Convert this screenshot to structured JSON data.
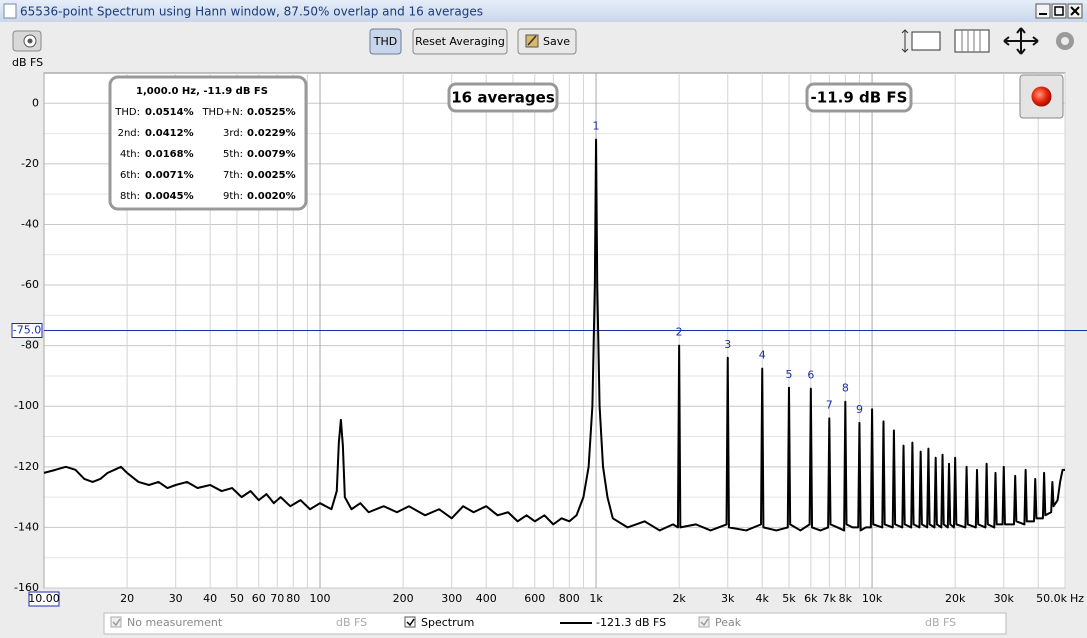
{
  "window": {
    "title": "65536-point Spectrum using Hann window, 87.50% overlap and 16 averages"
  },
  "toolbar": {
    "buttons": [
      "THD",
      "Reset Averaging",
      "Save"
    ]
  },
  "chart_data": {
    "type": "line",
    "y_unit": "dB FS",
    "x_unit": "Hz",
    "xscale": "log",
    "xlim": [
      10,
      50000
    ],
    "ylim": [
      -160,
      10
    ],
    "grid": true,
    "xticks": [
      {
        "value": 10,
        "label": "10.00"
      },
      20,
      30,
      40,
      50,
      60,
      70,
      80,
      100,
      200,
      300,
      400,
      600,
      800,
      {
        "value": 1000,
        "label": "1k"
      },
      {
        "value": 2000,
        "label": "2k"
      },
      {
        "value": 3000,
        "label": "3k"
      },
      {
        "value": 4000,
        "label": "4k"
      },
      {
        "value": 5000,
        "label": "5k"
      },
      {
        "value": 6000,
        "label": "6k"
      },
      {
        "value": 7000,
        "label": "7k"
      },
      {
        "value": 8000,
        "label": "8k"
      },
      {
        "value": 10000,
        "label": "10k"
      },
      {
        "value": 20000,
        "label": "20k"
      },
      {
        "value": 30000,
        "label": "30k"
      },
      {
        "value": 50000,
        "label": "50.0k"
      }
    ],
    "minor_xgrid": [
      90,
      500,
      700,
      900,
      9000,
      40000
    ],
    "yticks": [
      0,
      -20,
      -40,
      -60,
      -80,
      -100,
      -120,
      -140,
      -160
    ],
    "minor_ygrid": [
      -150,
      -130,
      -110,
      -90,
      -70,
      -50,
      -30,
      -10
    ],
    "cursor": {
      "value": -75,
      "label": "-75.0"
    },
    "series": [
      {
        "name": "Spectrum",
        "color": "#000000",
        "x": [
          10,
          11,
          12,
          13,
          14,
          15,
          16,
          17,
          18,
          19,
          20,
          22,
          24,
          26,
          28,
          30,
          33,
          36,
          40,
          44,
          48,
          52,
          56,
          60,
          64,
          68,
          72,
          78,
          85,
          92,
          100,
          110,
          115,
          117,
          119,
          121,
          123,
          130,
          140,
          150,
          170,
          190,
          210,
          240,
          270,
          300,
          330,
          360,
          400,
          440,
          480,
          520,
          560,
          600,
          650,
          700,
          750,
          800,
          850,
          900,
          940,
          970,
          990,
          1000,
          1010,
          1030,
          1060,
          1100,
          1150,
          1300,
          1500,
          1700,
          1900,
          1980,
          2000,
          2020,
          2300,
          2600,
          2970,
          3000,
          3030,
          3500,
          3960,
          4000,
          4040,
          4500,
          4950,
          5000,
          5050,
          5500,
          5940,
          6000,
          6060,
          6500,
          6930,
          7000,
          7070,
          7500,
          7920,
          8000,
          8080,
          8500,
          8910,
          9000,
          9090,
          9500,
          9900,
          10000,
          10100,
          10890,
          11000,
          11110,
          11880,
          12000,
          12120,
          12870,
          13000,
          13130,
          13860,
          14000,
          14140,
          14850,
          15000,
          15150,
          15840,
          16000,
          16160,
          16830,
          17000,
          17170,
          17820,
          18000,
          18180,
          18810,
          19000,
          19190,
          19800,
          20000,
          20200,
          21780,
          22000,
          22220,
          23760,
          24000,
          24240,
          25740,
          26000,
          26260,
          27720,
          28000,
          28280,
          29700,
          30000,
          30300,
          32670,
          33000,
          33330,
          35640,
          36000,
          36360,
          38610,
          39000,
          39390,
          41580,
          42000,
          42420,
          44550,
          45000,
          45450,
          47000,
          48000,
          49000,
          50000
        ],
        "values": [
          -122,
          -121,
          -120,
          -121,
          -124,
          -125,
          -124,
          -122,
          -121,
          -120,
          -122,
          -125,
          -126,
          -125,
          -127,
          -126,
          -125,
          -127,
          -126,
          -128,
          -127,
          -130,
          -128,
          -131,
          -129,
          -132,
          -130,
          -133,
          -131,
          -134,
          -132,
          -134,
          -128,
          -112,
          -104.5,
          -113,
          -130,
          -134,
          -132,
          -135,
          -133,
          -135,
          -133,
          -136,
          -134,
          -137,
          -133,
          -135,
          -133,
          -136,
          -135,
          -138,
          -136,
          -138,
          -136,
          -139,
          -137,
          -138,
          -136,
          -130,
          -120,
          -100,
          -60,
          -12,
          -60,
          -100,
          -120,
          -130,
          -137,
          -140,
          -138,
          -141,
          -139,
          -140,
          -80,
          -140,
          -139,
          -141,
          -139,
          -84,
          -140,
          -141,
          -139,
          -87.6,
          -140,
          -141,
          -140,
          -93.9,
          -139,
          -141,
          -139,
          -94.2,
          -140,
          -141,
          -140,
          -104,
          -139,
          -140,
          -141,
          -98.5,
          -139,
          -140,
          -140,
          -105.5,
          -141,
          -140,
          -140,
          -101,
          -139,
          -140,
          -105,
          -139,
          -140,
          -108,
          -139,
          -140,
          -113,
          -139,
          -140,
          -112,
          -139,
          -140,
          -115,
          -139,
          -140,
          -114,
          -139,
          -140,
          -117,
          -139,
          -140,
          -116,
          -139,
          -140,
          -119,
          -139,
          -140,
          -117,
          -139,
          -140,
          -120,
          -139,
          -140,
          -121,
          -139,
          -140,
          -119,
          -139,
          -140,
          -122,
          -139,
          -139,
          -120,
          -139,
          -139,
          -123,
          -138,
          -139,
          -121,
          -138,
          -138,
          -124,
          -137,
          -137,
          -122,
          -136,
          -135,
          -125,
          -133,
          -131,
          -125,
          -121,
          -121
        ]
      }
    ],
    "harmonics": [
      {
        "label": "1",
        "x": 1000,
        "y": -12
      },
      {
        "label": "2",
        "x": 2000,
        "y": -80
      },
      {
        "label": "3",
        "x": 3000,
        "y": -84
      },
      {
        "label": "4",
        "x": 4000,
        "y": -87.6
      },
      {
        "label": "5",
        "x": 5000,
        "y": -93.9
      },
      {
        "label": "6",
        "x": 6000,
        "y": -94.2
      },
      {
        "label": "7",
        "x": 7000,
        "y": -104
      },
      {
        "label": "8",
        "x": 8000,
        "y": -98.5
      },
      {
        "label": "9",
        "x": 9000,
        "y": -105.5
      }
    ],
    "info_box": {
      "header": "1,000.0 Hz, -11.9 dB FS",
      "rows": [
        [
          [
            "THD:",
            "0.0514%"
          ],
          [
            "THD+N:",
            "0.0525%"
          ]
        ],
        [
          [
            "2nd:",
            "0.0412%"
          ],
          [
            "3rd:",
            "0.0229%"
          ]
        ],
        [
          [
            "4th:",
            "0.0168%"
          ],
          [
            "5th:",
            "0.0079%"
          ]
        ],
        [
          [
            "6th:",
            "0.0071%"
          ],
          [
            "7th:",
            "0.0025%"
          ]
        ],
        [
          [
            "8th:",
            "0.0045%"
          ],
          [
            "9th:",
            "0.0020%"
          ]
        ]
      ]
    },
    "averages": "16 averages",
    "level": "-11.9 dB FS"
  },
  "legend_bar": {
    "no_measurement": "No measurement",
    "no_measurement_unit": "dB FS",
    "spectrum_readout": "-121.3 dB FS",
    "peak": "Peak",
    "peak_unit": "dB FS"
  }
}
